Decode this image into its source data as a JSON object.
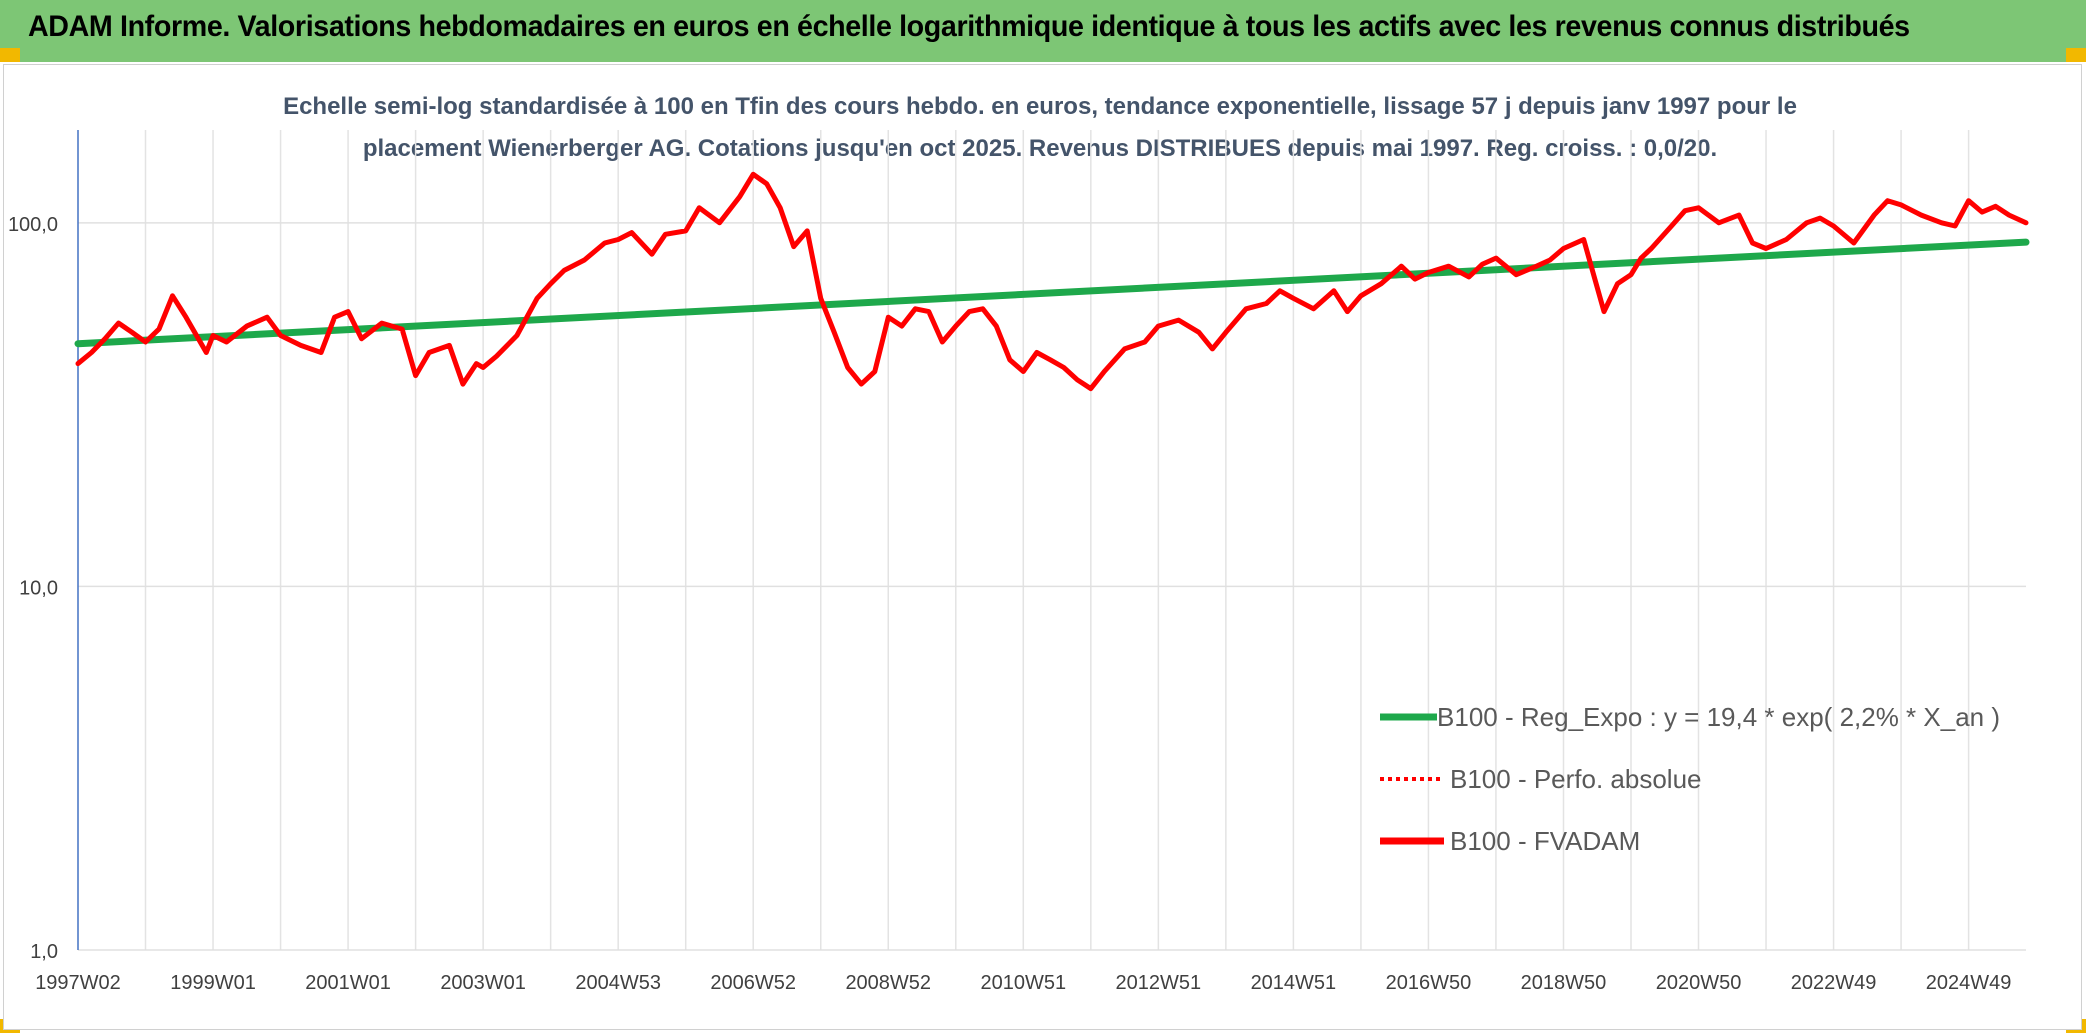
{
  "header": {
    "title": "ADAM Informe. Valorisations hebdomadaires en euros en échelle logarithmique identique à tous les actifs avec les revenus connus distribués",
    "background_color": "#7dc675"
  },
  "chart_data": {
    "type": "line",
    "title_line1": "Echelle semi-log standardisée à 100 en Tfin des cours hebdo. en euros, tendance exponentielle, lissage 57 j depuis janv 1997 pour le",
    "title_line2": "placement Wienerberger AG. Cotations jusqu'en oct 2025. Revenus DISTRIBUES depuis mai 1997. Reg. croiss. : 0,0/20.",
    "y_scale": "log",
    "ylim": [
      1,
      180
    ],
    "y_ticks": [
      1,
      10,
      100
    ],
    "y_tick_labels": [
      "1,0",
      "10,0",
      "100,0"
    ],
    "xlim": [
      1997.0,
      2025.85
    ],
    "x_ticks": [
      1997.0,
      1999.0,
      2001.0,
      2003.0,
      2005.0,
      2007.0,
      2009.0,
      2011.0,
      2013.0,
      2015.0,
      2017.0,
      2019.0,
      2021.0,
      2023.0,
      2025.0
    ],
    "x_tick_labels": [
      "1997W02",
      "1999W01",
      "2001W01",
      "2003W01",
      "2004W53",
      "2006W52",
      "2008W52",
      "2010W51",
      "2012W51",
      "2014W51",
      "2016W50",
      "2018W50",
      "2020W50",
      "2022W49",
      "2024W49"
    ],
    "grid": true,
    "legend_position": "bottom-right",
    "series": [
      {
        "name": "B100 - Reg_Expo : y = 19,4 * exp( 2,2% * X_an )",
        "color": "#1ea84b",
        "style": "solid",
        "x": [
          1997.0,
          2025.85
        ],
        "y": [
          46.5,
          88.5
        ]
      },
      {
        "name": "B100 - Perfo. absolue",
        "color": "#ff0000",
        "style": "dotted",
        "x": [],
        "y": []
      },
      {
        "name": "B100 - FVADAM",
        "color": "#ff0000",
        "style": "solid",
        "x": [
          1997.0,
          1997.2,
          1997.4,
          1997.6,
          1997.8,
          1998.0,
          1998.2,
          1998.4,
          1998.6,
          1998.9,
          1999.0,
          1999.2,
          1999.5,
          1999.8,
          2000.0,
          2000.3,
          2000.6,
          2000.8,
          2001.0,
          2001.2,
          2001.5,
          2001.8,
          2002.0,
          2002.2,
          2002.5,
          2002.7,
          2002.9,
          2003.0,
          2003.2,
          2003.5,
          2003.8,
          2004.0,
          2004.2,
          2004.5,
          2004.8,
          2005.0,
          2005.2,
          2005.5,
          2005.7,
          2006.0,
          2006.2,
          2006.5,
          2006.8,
          2007.0,
          2007.2,
          2007.4,
          2007.6,
          2007.8,
          2008.0,
          2008.2,
          2008.4,
          2008.6,
          2008.8,
          2009.0,
          2009.2,
          2009.4,
          2009.6,
          2009.8,
          2010.0,
          2010.2,
          2010.4,
          2010.6,
          2010.8,
          2011.0,
          2011.2,
          2011.4,
          2011.6,
          2011.8,
          2012.0,
          2012.2,
          2012.5,
          2012.8,
          2013.0,
          2013.3,
          2013.6,
          2013.8,
          2014.0,
          2014.3,
          2014.6,
          2014.8,
          2015.0,
          2015.3,
          2015.6,
          2015.8,
          2016.0,
          2016.3,
          2016.6,
          2016.8,
          2017.0,
          2017.3,
          2017.6,
          2017.8,
          2018.0,
          2018.3,
          2018.6,
          2018.8,
          2019.0,
          2019.3,
          2019.6,
          2019.8,
          2020.0,
          2020.15,
          2020.3,
          2020.6,
          2020.8,
          2021.0,
          2021.3,
          2021.6,
          2021.8,
          2022.0,
          2022.3,
          2022.6,
          2022.8,
          2023.0,
          2023.3,
          2023.6,
          2023.8,
          2024.0,
          2024.3,
          2024.6,
          2024.8,
          2025.0,
          2025.2,
          2025.4,
          2025.6,
          2025.85
        ],
        "y": [
          41,
          44,
          48,
          53,
          50,
          47,
          51,
          63,
          55,
          44,
          49,
          47,
          52,
          55,
          49,
          46,
          44,
          55,
          57,
          48,
          53,
          51,
          38,
          44,
          46,
          36,
          41,
          40,
          43,
          49,
          62,
          68,
          74,
          79,
          88,
          90,
          94,
          82,
          93,
          95,
          110,
          100,
          118,
          136,
          128,
          110,
          86,
          95,
          62,
          50,
          40,
          36,
          39,
          55,
          52,
          58,
          57,
          47,
          52,
          57,
          58,
          52,
          42,
          39,
          44,
          42,
          40,
          37,
          35,
          39,
          45,
          47,
          52,
          54,
          50,
          45,
          50,
          58,
          60,
          65,
          62,
          58,
          65,
          57,
          63,
          68,
          76,
          70,
          73,
          76,
          71,
          77,
          80,
          72,
          76,
          79,
          85,
          90,
          57,
          68,
          72,
          80,
          85,
          98,
          108,
          110,
          100,
          105,
          88,
          85,
          90,
          100,
          103,
          98,
          88,
          105,
          115,
          112,
          105,
          100,
          98,
          115,
          107,
          111,
          105,
          100
        ]
      }
    ]
  }
}
